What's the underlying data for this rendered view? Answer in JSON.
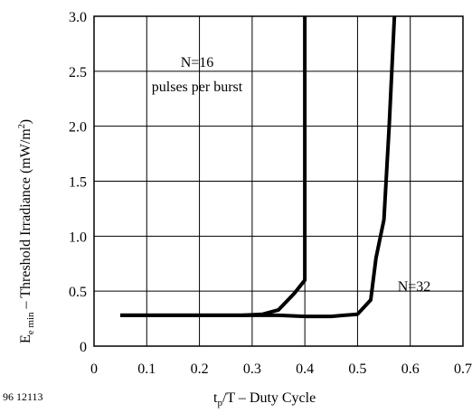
{
  "figure_number": "96 12113",
  "chart_data": {
    "type": "line",
    "xlabel": {
      "main": "t",
      "sub": "p",
      "rest": "/T – Duty Cycle"
    },
    "ylabel": {
      "main": "E",
      "sub": "e min",
      "rest": "  –  Threshold Irradiance (mW/m",
      "sup": "2",
      "close": ")"
    },
    "xlim": [
      0,
      0.7
    ],
    "ylim": [
      0,
      3.0
    ],
    "x_ticks": [
      "0",
      "0.1",
      "0.2",
      "0.3",
      "0.4",
      "0.5",
      "0.6",
      "0.7"
    ],
    "y_ticks": [
      "0",
      "0.5",
      "1.0",
      "1.5",
      "2.0",
      "2.5",
      "3.0"
    ],
    "grid": true,
    "series": [
      {
        "name": "N=16 pulses per burst",
        "x": [
          0.05,
          0.1,
          0.2,
          0.28,
          0.32,
          0.35,
          0.38,
          0.4,
          0.4,
          0.4
        ],
        "y": [
          0.28,
          0.28,
          0.28,
          0.28,
          0.29,
          0.33,
          0.48,
          0.6,
          1.5,
          3.0
        ]
      },
      {
        "name": "N=32",
        "x": [
          0.05,
          0.1,
          0.2,
          0.3,
          0.35,
          0.4,
          0.45,
          0.5,
          0.525,
          0.535,
          0.55,
          0.56,
          0.57
        ],
        "y": [
          0.28,
          0.28,
          0.28,
          0.28,
          0.28,
          0.27,
          0.27,
          0.29,
          0.42,
          0.8,
          1.15,
          2.0,
          3.0
        ]
      }
    ],
    "annotations": [
      {
        "line1": "N=16",
        "line2": "pulses  per burst"
      },
      {
        "line1": "N=32"
      }
    ]
  }
}
